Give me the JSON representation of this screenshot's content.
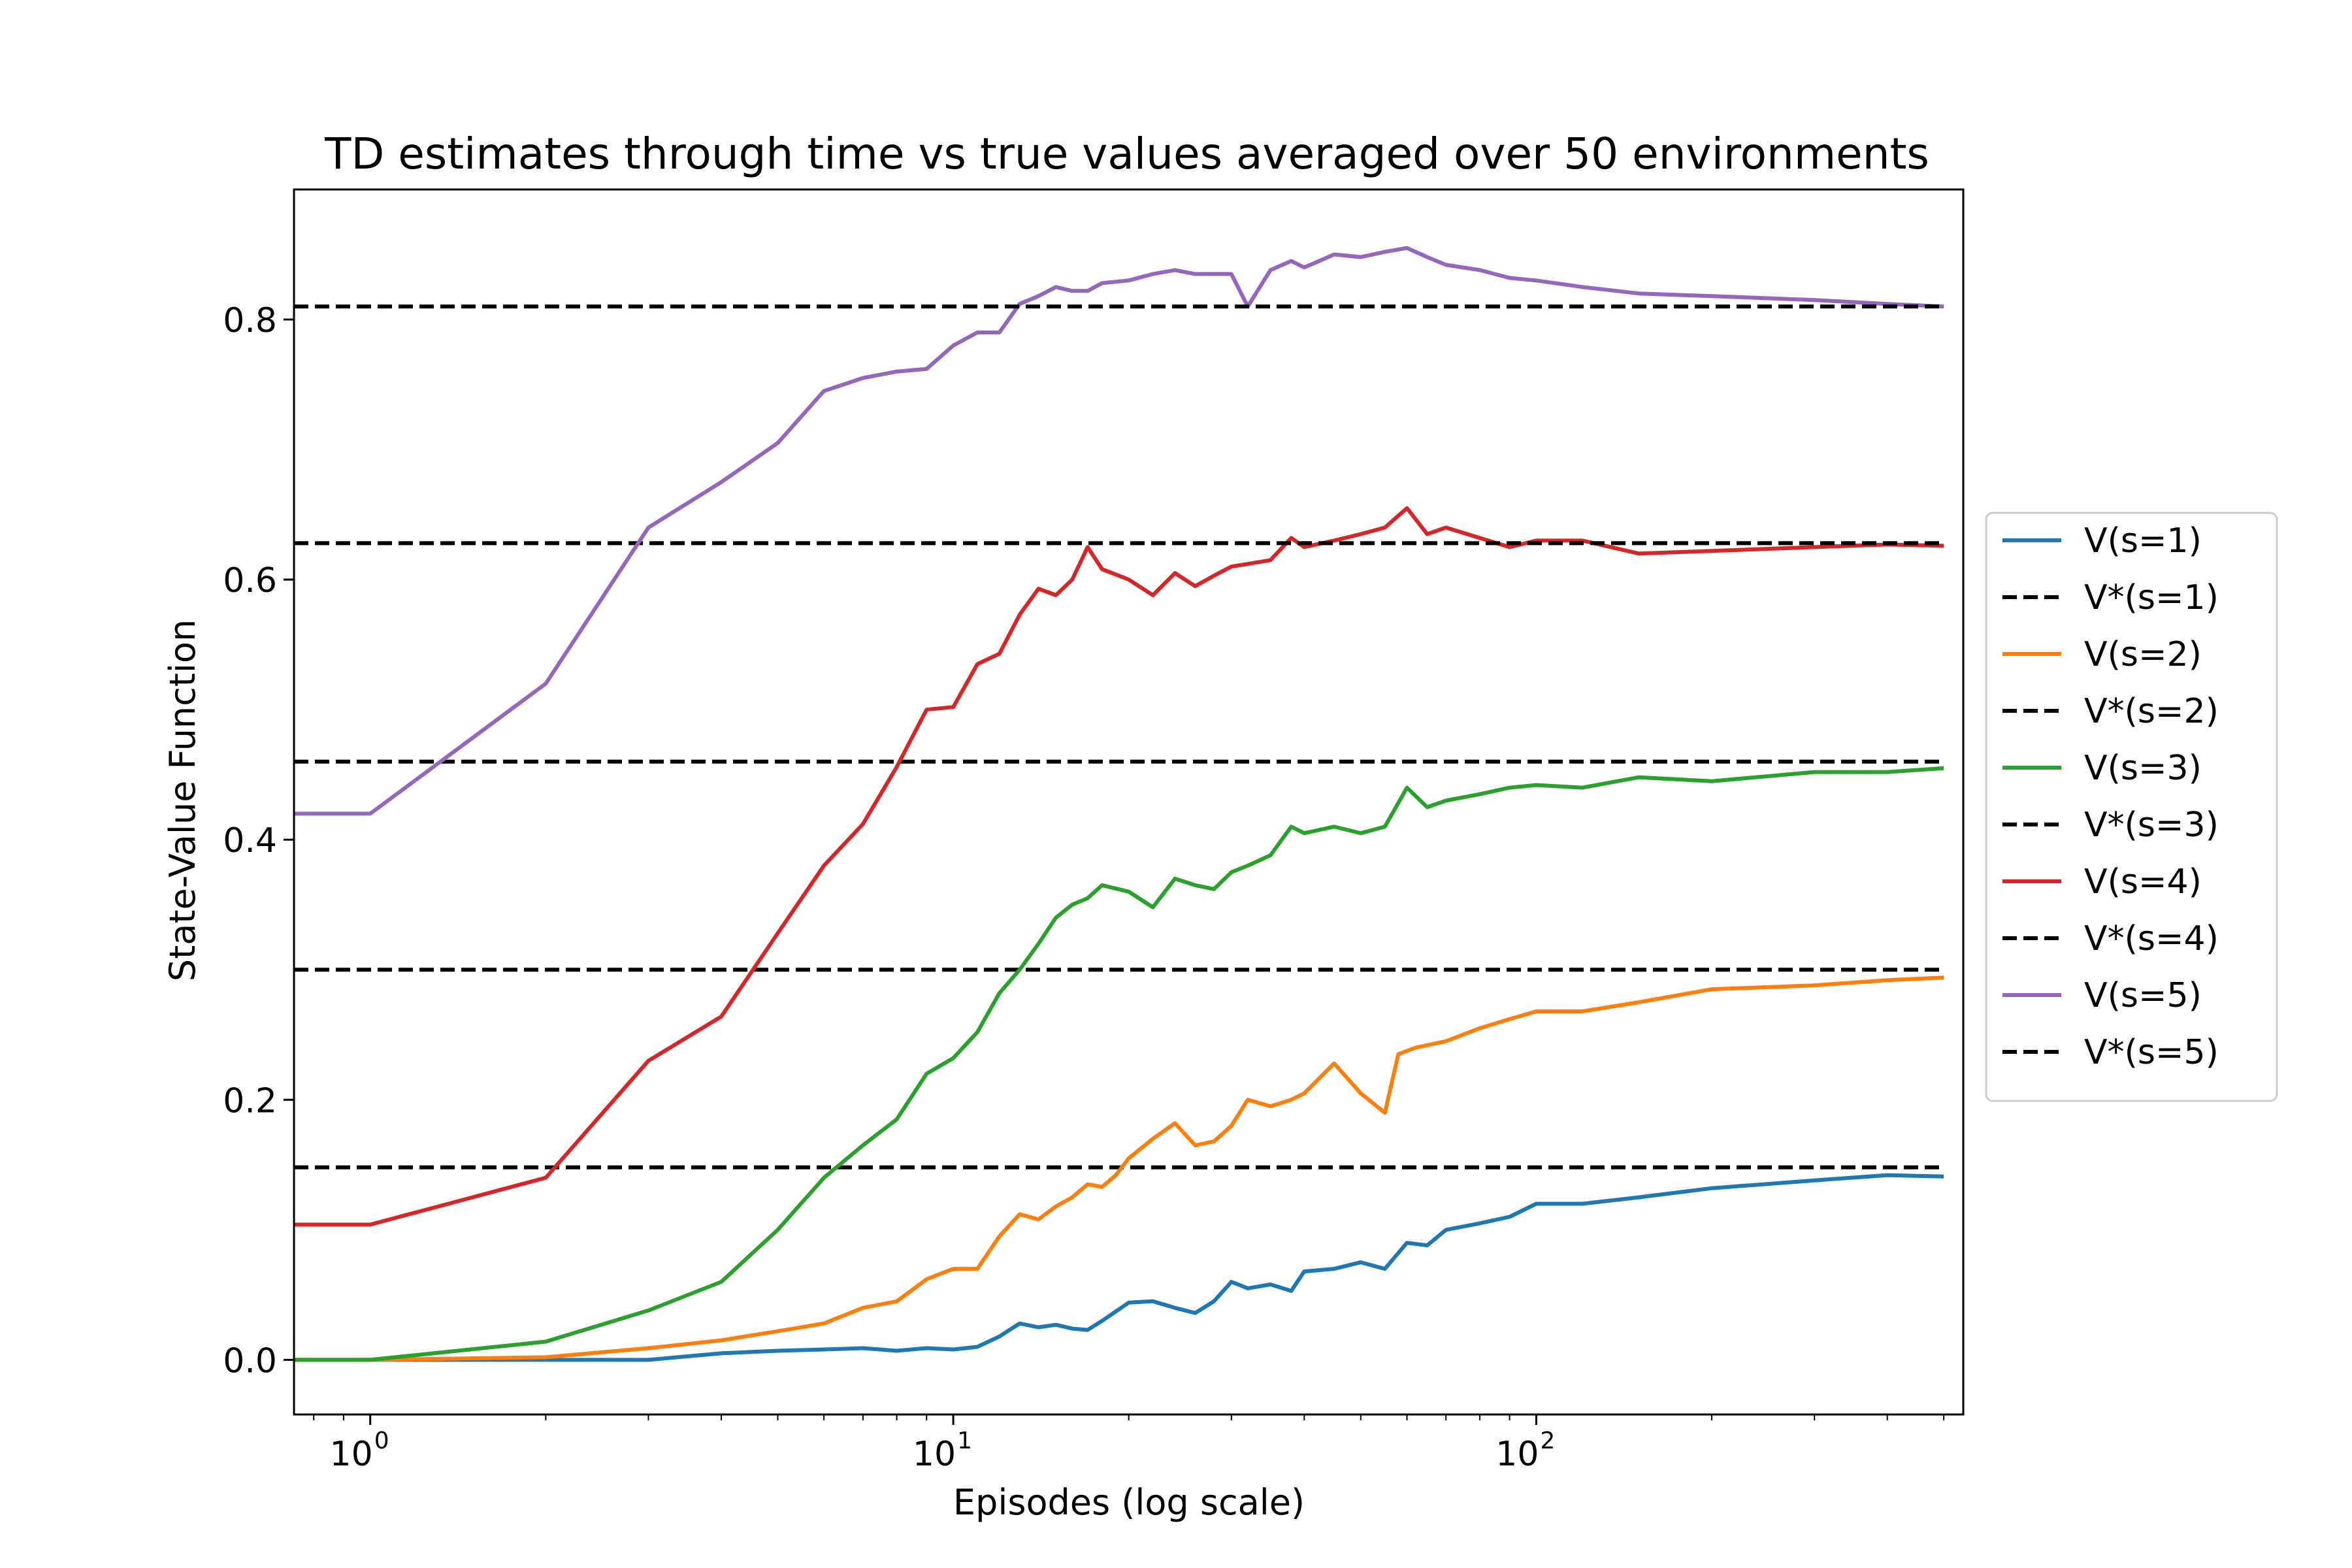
{
  "chart_data": {
    "type": "line",
    "title": "TD estimates through time vs true values averaged over 50 environments",
    "xlabel": "Episodes (log scale)",
    "ylabel": "State-Value Function",
    "xscale": "log",
    "xlim": [
      0.74,
      540
    ],
    "ylim": [
      -0.042,
      0.9
    ],
    "yticks": [
      0.0,
      0.2,
      0.4,
      0.6,
      0.8
    ],
    "ytick_labels": [
      "0.0",
      "0.2",
      "0.4",
      "0.6",
      "0.8"
    ],
    "xticks": [
      1,
      10,
      100
    ],
    "xtick_labels": [
      {
        "base": "10",
        "exp": "0"
      },
      {
        "base": "10",
        "exp": "1"
      },
      {
        "base": "10",
        "exp": "2"
      }
    ],
    "grid": false,
    "legend_position": "right-outside",
    "series": [
      {
        "name": "V(s=1)",
        "color": "#1f77b4",
        "style": "solid",
        "x": [
          0.74,
          1,
          2,
          3,
          4,
          5,
          6,
          7,
          8,
          9,
          10,
          11,
          12,
          13,
          14,
          15,
          16,
          17,
          18,
          20,
          22,
          24,
          26,
          28,
          30,
          32,
          35,
          38,
          40,
          45,
          50,
          55,
          60,
          65,
          70,
          80,
          90,
          100,
          120,
          150,
          200,
          300,
          400,
          500
        ],
        "y": [
          0.0,
          0.0,
          0.0,
          0.0,
          0.005,
          0.007,
          0.008,
          0.009,
          0.007,
          0.009,
          0.008,
          0.01,
          0.018,
          0.028,
          0.025,
          0.027,
          0.024,
          0.023,
          0.03,
          0.044,
          0.045,
          0.04,
          0.036,
          0.045,
          0.06,
          0.055,
          0.058,
          0.053,
          0.068,
          0.07,
          0.075,
          0.07,
          0.09,
          0.088,
          0.1,
          0.105,
          0.11,
          0.12,
          0.12,
          0.125,
          0.132,
          0.138,
          0.142,
          0.141
        ]
      },
      {
        "name": "V*(s=1)",
        "color": "#000000",
        "style": "dashed",
        "x": [
          0.74,
          500
        ],
        "y": [
          0.148,
          0.148
        ]
      },
      {
        "name": "V(s=2)",
        "color": "#ff7f0e",
        "style": "solid",
        "x": [
          0.74,
          1,
          2,
          3,
          4,
          5,
          6,
          7,
          8,
          9,
          10,
          11,
          12,
          13,
          14,
          15,
          16,
          17,
          18,
          19,
          20,
          22,
          24,
          26,
          28,
          30,
          32,
          35,
          38,
          40,
          45,
          50,
          55,
          58,
          62,
          70,
          80,
          90,
          100,
          120,
          150,
          200,
          300,
          400,
          500
        ],
        "y": [
          0.0,
          0.0,
          0.002,
          0.009,
          0.015,
          0.022,
          0.028,
          0.04,
          0.045,
          0.062,
          0.07,
          0.07,
          0.095,
          0.112,
          0.108,
          0.118,
          0.125,
          0.135,
          0.133,
          0.142,
          0.155,
          0.17,
          0.182,
          0.165,
          0.168,
          0.18,
          0.2,
          0.195,
          0.2,
          0.205,
          0.228,
          0.205,
          0.19,
          0.235,
          0.24,
          0.245,
          0.255,
          0.262,
          0.268,
          0.268,
          0.275,
          0.285,
          0.288,
          0.292,
          0.294
        ]
      },
      {
        "name": "V*(s=2)",
        "color": "#000000",
        "style": "dashed",
        "x": [
          0.74,
          500
        ],
        "y": [
          0.3,
          0.3
        ]
      },
      {
        "name": "V(s=3)",
        "color": "#2ca02c",
        "style": "solid",
        "x": [
          0.74,
          1,
          2,
          3,
          4,
          5,
          6,
          7,
          8,
          9,
          10,
          11,
          12,
          13,
          14,
          15,
          16,
          17,
          18,
          20,
          22,
          24,
          26,
          28,
          30,
          32,
          35,
          38,
          40,
          45,
          50,
          55,
          60,
          65,
          70,
          80,
          90,
          100,
          120,
          150,
          200,
          300,
          400,
          500
        ],
        "y": [
          0.0,
          0.0,
          0.014,
          0.038,
          0.06,
          0.1,
          0.14,
          0.165,
          0.185,
          0.22,
          0.232,
          0.252,
          0.282,
          0.3,
          0.32,
          0.34,
          0.35,
          0.355,
          0.365,
          0.36,
          0.348,
          0.37,
          0.365,
          0.362,
          0.375,
          0.38,
          0.388,
          0.41,
          0.405,
          0.41,
          0.405,
          0.41,
          0.44,
          0.425,
          0.43,
          0.435,
          0.44,
          0.442,
          0.44,
          0.448,
          0.445,
          0.452,
          0.452,
          0.455
        ]
      },
      {
        "name": "V*(s=3)",
        "color": "#000000",
        "style": "dashed",
        "x": [
          0.74,
          500
        ],
        "y": [
          0.46,
          0.46
        ]
      },
      {
        "name": "V(s=4)",
        "color": "#d62728",
        "style": "solid",
        "x": [
          0.74,
          1,
          2,
          3,
          4,
          5,
          6,
          7,
          8,
          9,
          10,
          11,
          12,
          13,
          14,
          15,
          16,
          17,
          18,
          20,
          22,
          24,
          26,
          28,
          30,
          32,
          35,
          38,
          40,
          45,
          50,
          55,
          60,
          65,
          70,
          80,
          90,
          100,
          120,
          150,
          200,
          300,
          400,
          500
        ],
        "y": [
          0.104,
          0.104,
          0.14,
          0.23,
          0.264,
          0.328,
          0.38,
          0.412,
          0.456,
          0.5,
          0.502,
          0.535,
          0.543,
          0.573,
          0.593,
          0.588,
          0.6,
          0.625,
          0.608,
          0.6,
          0.588,
          0.605,
          0.595,
          0.603,
          0.61,
          0.612,
          0.615,
          0.632,
          0.625,
          0.63,
          0.635,
          0.64,
          0.655,
          0.635,
          0.64,
          0.632,
          0.625,
          0.63,
          0.63,
          0.62,
          0.622,
          0.625,
          0.627,
          0.626
        ]
      },
      {
        "name": "V*(s=4)",
        "color": "#000000",
        "style": "dashed",
        "x": [
          0.74,
          500
        ],
        "y": [
          0.628,
          0.628
        ]
      },
      {
        "name": "V(s=5)",
        "color": "#9467bd",
        "style": "solid",
        "x": [
          0.74,
          1,
          2,
          3,
          4,
          5,
          6,
          7,
          8,
          9,
          10,
          11,
          12,
          13,
          14,
          15,
          16,
          17,
          18,
          20,
          22,
          24,
          26,
          28,
          30,
          32,
          35,
          38,
          40,
          45,
          50,
          55,
          60,
          65,
          70,
          80,
          90,
          100,
          120,
          150,
          200,
          300,
          400,
          500
        ],
        "y": [
          0.42,
          0.42,
          0.52,
          0.64,
          0.675,
          0.705,
          0.745,
          0.755,
          0.76,
          0.762,
          0.78,
          0.79,
          0.79,
          0.812,
          0.818,
          0.825,
          0.822,
          0.822,
          0.828,
          0.83,
          0.835,
          0.838,
          0.835,
          0.835,
          0.835,
          0.81,
          0.838,
          0.845,
          0.84,
          0.85,
          0.848,
          0.852,
          0.855,
          0.848,
          0.842,
          0.838,
          0.832,
          0.83,
          0.825,
          0.82,
          0.818,
          0.815,
          0.812,
          0.81
        ]
      },
      {
        "name": "V*(s=5)",
        "color": "#000000",
        "style": "dashed",
        "x": [
          0.74,
          500
        ],
        "y": [
          0.81,
          0.81
        ]
      }
    ]
  }
}
